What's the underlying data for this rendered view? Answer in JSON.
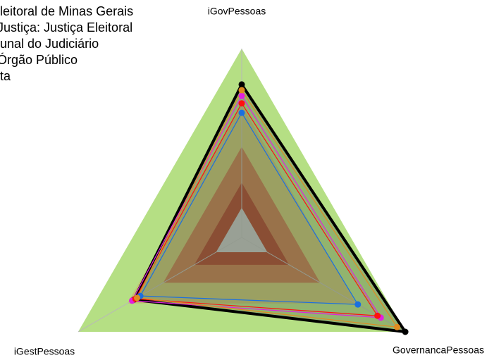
{
  "chart_data": {
    "type": "radar",
    "axes": [
      "iGovPessoas",
      "GovernancaPessoas",
      "iGestPessoas"
    ],
    "rlim": [
      0,
      1
    ],
    "bands": [
      {
        "value": 1.0,
        "color": "#b5df84"
      },
      {
        "value": 0.7,
        "color": "#c4c172"
      },
      {
        "value": 0.48,
        "color": "#c07a4e"
      },
      {
        "value": 0.29,
        "color": "#a9432b"
      },
      {
        "value": 0.157,
        "color": "#c0c0c0"
      }
    ],
    "series": [
      {
        "name": "leitoral de Minas Gerais",
        "color": "#000000",
        "values": [
          0.81,
          1.0,
          0.66
        ]
      },
      {
        "name": "Justiça: Justiça Eleitoral",
        "color": "#e020e0",
        "values": [
          0.75,
          0.85,
          0.67
        ]
      },
      {
        "name": "unal do Judiciário",
        "color": "#ff1010",
        "values": [
          0.71,
          0.83,
          0.65
        ]
      },
      {
        "name": "Órgão Público",
        "color": "#1a6fe0",
        "values": [
          0.66,
          0.71,
          0.62
        ]
      },
      {
        "name": "ta",
        "color": "#e08a20",
        "values": [
          0.78,
          0.95,
          0.64
        ]
      }
    ]
  }
}
